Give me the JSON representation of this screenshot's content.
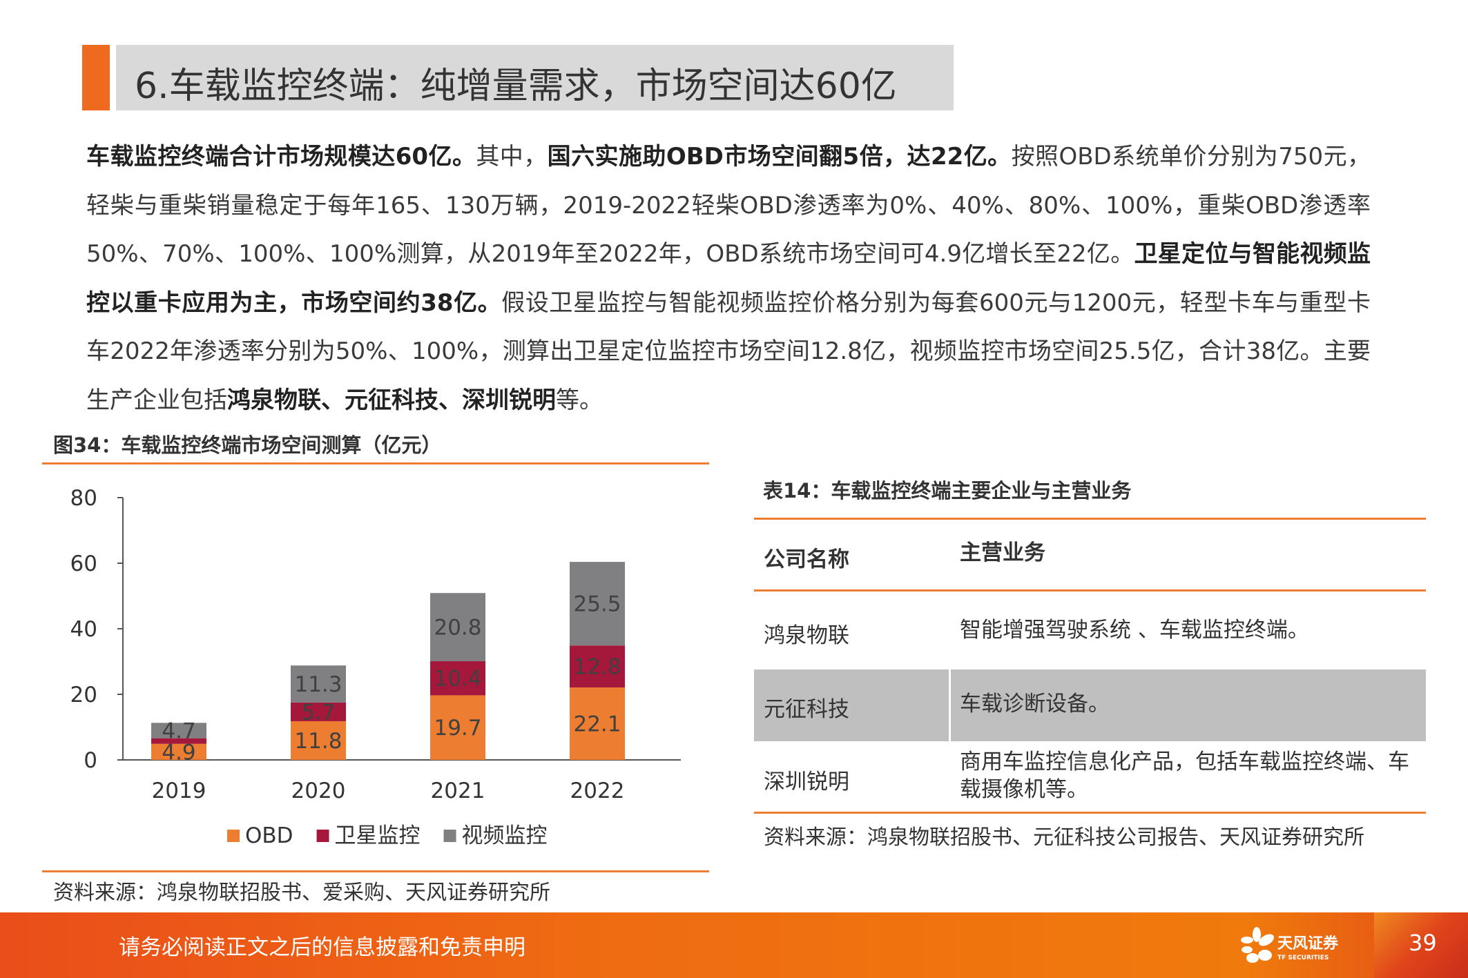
{
  "header": {
    "title": "6.车载监控终端：纯增量需求，市场空间达60亿"
  },
  "paragraph": [
    {
      "t": "车载监控终端合计市场规模达60亿。",
      "b": true
    },
    {
      "t": "其中，",
      "b": false
    },
    {
      "t": "国六实施助OBD市场空间翻5倍，达22亿。",
      "b": true
    },
    {
      "t": "按照OBD系统单价分别为750元，轻柴与重柴销量稳定于每年165、130万辆，2019-2022轻柴OBD渗透率为0%、40%、80%、100%，重柴OBD渗透率50%、70%、100%、100%测算，从2019年至2022年，OBD系统市场空间可4.9亿增长至22亿。",
      "b": false
    },
    {
      "t": "卫星定位与智能视频监控以重卡应用为主，市场空间约38亿。",
      "b": true
    },
    {
      "t": "假设卫星监控与智能视频监控价格分别为每套600元与1200元，轻型卡车与重型卡车2022年渗透率分别为50%、100%，测算出卫星定位监控市场空间12.8亿，视频监控市场空间25.5亿，合计38亿。主要生产企业包括",
      "b": false
    },
    {
      "t": "鸿泉物联、元征科技、深圳锐明",
      "b": true
    },
    {
      "t": "等。",
      "b": false
    }
  ],
  "figure": {
    "caption": "图34：车载监控终端市场空间测算（亿元）",
    "source": "资料来源：鸿泉物联招股书、爱采购、天风证券研究所"
  },
  "chart_data": {
    "type": "bar",
    "stacked": true,
    "categories": [
      "2019",
      "2020",
      "2021",
      "2022"
    ],
    "series": [
      {
        "name": "OBD",
        "values": [
          4.9,
          11.8,
          19.7,
          22.1
        ],
        "color": "#ed7d31"
      },
      {
        "name": "卫星监控",
        "values": [
          1.7,
          5.7,
          10.4,
          12.8
        ],
        "labels": [
          "",
          "5.7",
          "10.4",
          "12.8"
        ],
        "color": "#a5183c"
      },
      {
        "name": "视频监控",
        "values": [
          4.7,
          11.3,
          20.8,
          25.5
        ],
        "color": "#808083"
      }
    ],
    "yticks": [
      "0",
      "20",
      "40",
      "60",
      "80"
    ],
    "ylim": [
      0,
      80
    ],
    "legend": "bottom",
    "grid": false
  },
  "table": {
    "caption": "表14：车载监控终端主要企业与主营业务",
    "headers": [
      "公司名称",
      "主营业务"
    ],
    "rows": [
      [
        "鸿泉物联",
        "智能增强驾驶系统 、车载监控终端。"
      ],
      [
        "元征科技",
        "车载诊断设备。"
      ],
      [
        "深圳锐明",
        "商用车监控信息化产品，包括车载监控终端、车载摄像机等。"
      ]
    ],
    "source": "资料来源：鸿泉物联招股书、元征科技公司报告、天风证券研究所",
    "highlight_color": "#bfbfbf"
  },
  "footer": {
    "disclaimer": "请务必阅读正文之后的信息披露和免责申明",
    "page": "39",
    "logo_cn": "天风证券",
    "logo_en": "TF SECURITIES"
  }
}
